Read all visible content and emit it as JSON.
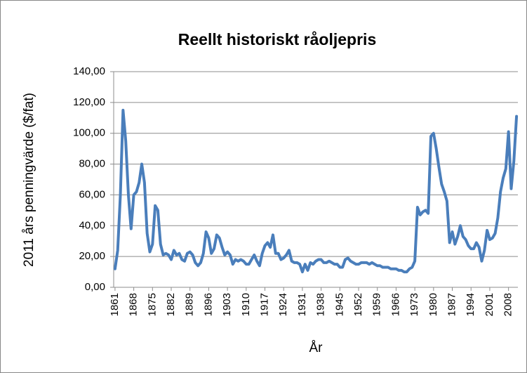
{
  "chart_data": {
    "type": "line",
    "title": "Reellt historiskt råoljepris",
    "xlabel": "År",
    "ylabel": "2011 års penningvärde ($/fat)",
    "x": [
      1861,
      1862,
      1863,
      1864,
      1865,
      1866,
      1867,
      1868,
      1869,
      1870,
      1871,
      1872,
      1873,
      1874,
      1875,
      1876,
      1877,
      1878,
      1879,
      1880,
      1881,
      1882,
      1883,
      1884,
      1885,
      1886,
      1887,
      1888,
      1889,
      1890,
      1891,
      1892,
      1893,
      1894,
      1895,
      1896,
      1897,
      1898,
      1899,
      1900,
      1901,
      1902,
      1903,
      1904,
      1905,
      1906,
      1907,
      1908,
      1909,
      1910,
      1911,
      1912,
      1913,
      1914,
      1915,
      1916,
      1917,
      1918,
      1919,
      1920,
      1921,
      1922,
      1923,
      1924,
      1925,
      1926,
      1927,
      1928,
      1929,
      1930,
      1931,
      1932,
      1933,
      1934,
      1935,
      1936,
      1937,
      1938,
      1939,
      1940,
      1941,
      1942,
      1943,
      1944,
      1945,
      1946,
      1947,
      1948,
      1949,
      1950,
      1951,
      1952,
      1953,
      1954,
      1955,
      1956,
      1957,
      1958,
      1959,
      1960,
      1961,
      1962,
      1963,
      1964,
      1965,
      1966,
      1967,
      1968,
      1969,
      1970,
      1971,
      1972,
      1973,
      1974,
      1975,
      1976,
      1977,
      1978,
      1979,
      1980,
      1981,
      1982,
      1983,
      1984,
      1985,
      1986,
      1987,
      1988,
      1989,
      1990,
      1991,
      1992,
      1993,
      1994,
      1995,
      1996,
      1997,
      1998,
      1999,
      2000,
      2001,
      2002,
      2003,
      2004,
      2005,
      2006,
      2007,
      2008,
      2009,
      2010,
      2011
    ],
    "values": [
      12,
      24,
      60,
      115,
      95,
      60,
      38,
      60,
      62,
      68,
      80,
      68,
      35,
      23,
      28,
      53,
      50,
      28,
      21,
      22,
      21,
      18,
      24,
      21,
      22,
      18,
      17,
      22,
      23,
      21,
      16,
      14,
      16,
      22,
      36,
      32,
      22,
      25,
      34,
      32,
      26,
      21,
      23,
      21,
      15,
      18,
      17,
      18,
      17,
      15,
      15,
      18,
      21,
      17,
      14,
      22,
      27,
      29,
      26,
      34,
      22,
      22,
      18,
      19,
      21,
      24,
      17,
      16,
      16,
      15,
      10,
      15,
      11,
      16,
      15,
      17,
      18,
      18,
      16,
      16,
      17,
      16,
      15,
      15,
      13,
      13,
      18,
      19,
      17,
      16,
      15,
      15,
      16,
      16,
      16,
      15,
      16,
      15,
      14,
      14,
      13,
      13,
      13,
      12,
      12,
      12,
      11,
      11,
      10,
      10,
      12,
      13,
      17,
      52,
      47,
      49,
      50,
      48,
      98,
      100,
      90,
      78,
      67,
      62,
      56,
      29,
      36,
      28,
      33,
      40,
      33,
      31,
      27,
      25,
      25,
      29,
      26,
      17,
      24,
      37,
      31,
      32,
      35,
      45,
      62,
      71,
      77,
      101,
      64,
      82,
      111
    ],
    "color": "#4a7ebb",
    "xlim": [
      1861,
      2011
    ],
    "xticks": [
      1861,
      1868,
      1875,
      1882,
      1889,
      1896,
      1903,
      1910,
      1917,
      1924,
      1931,
      1938,
      1945,
      1952,
      1959,
      1966,
      1973,
      1980,
      1987,
      1994,
      2001,
      2008
    ],
    "ylim": [
      0,
      140
    ],
    "yticks": [
      {
        "value": 0,
        "label": "0,00"
      },
      {
        "value": 20,
        "label": "20,00"
      },
      {
        "value": 40,
        "label": "40,00"
      },
      {
        "value": 60,
        "label": "60,00"
      },
      {
        "value": 80,
        "label": "80,00"
      },
      {
        "value": 100,
        "label": "100,00"
      },
      {
        "value": 120,
        "label": "120,00"
      },
      {
        "value": 140,
        "label": "140,00"
      }
    ],
    "grid": true
  }
}
